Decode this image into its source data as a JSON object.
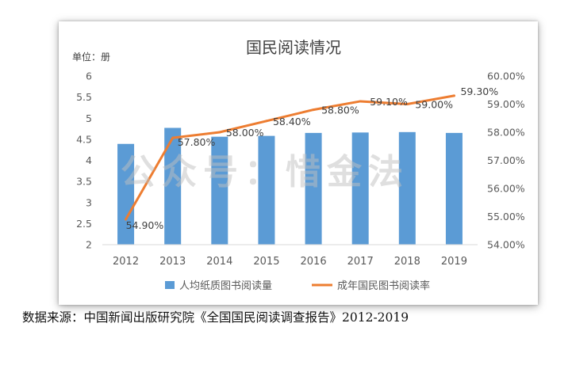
{
  "chart_data": {
    "type": "bar",
    "title": "国民阅读情况",
    "ylabel_left": "单位：册",
    "categories": [
      "2012",
      "2013",
      "2014",
      "2015",
      "2016",
      "2017",
      "2018",
      "2019"
    ],
    "left_axis": {
      "ylim": [
        2,
        6
      ],
      "ticks": [
        "6",
        "5.5",
        "5",
        "4.5",
        "4",
        "3.5",
        "3",
        "2.5",
        "2"
      ],
      "tick_values": [
        6,
        5.5,
        5,
        4.5,
        4,
        3.5,
        3,
        2.5,
        2
      ]
    },
    "right_axis": {
      "ylim": [
        54,
        60
      ],
      "ticks": [
        "60.00%",
        "59.00%",
        "58.00%",
        "57.00%",
        "56.00%",
        "55.00%",
        "54.00%"
      ],
      "tick_values": [
        60,
        59,
        58,
        57,
        56,
        55,
        54
      ]
    },
    "series": [
      {
        "name": "人均纸质图书阅读量",
        "type": "bar",
        "axis": "left",
        "color": "#5B9BD5",
        "values": [
          4.39,
          4.77,
          4.56,
          4.58,
          4.65,
          4.66,
          4.67,
          4.65
        ]
      },
      {
        "name": "成年国民图书阅读率",
        "type": "line",
        "axis": "right",
        "color": "#ED7D31",
        "values": [
          54.9,
          57.8,
          58.0,
          58.4,
          58.8,
          59.1,
          59.0,
          59.3
        ],
        "labels": [
          "54.90%",
          "57.80%",
          "58.00%",
          "58.40%",
          "58.80%",
          "59.10%",
          "59.00%",
          "59.30%"
        ]
      }
    ],
    "grid": false,
    "legend": "bottom"
  },
  "watermark": "公众号：惜金法",
  "source": "数据来源：中国新闻出版研究院《全国国民阅读调查报告》2012-2019",
  "colors": {
    "axis_text": "#595959",
    "title": "#404040"
  }
}
